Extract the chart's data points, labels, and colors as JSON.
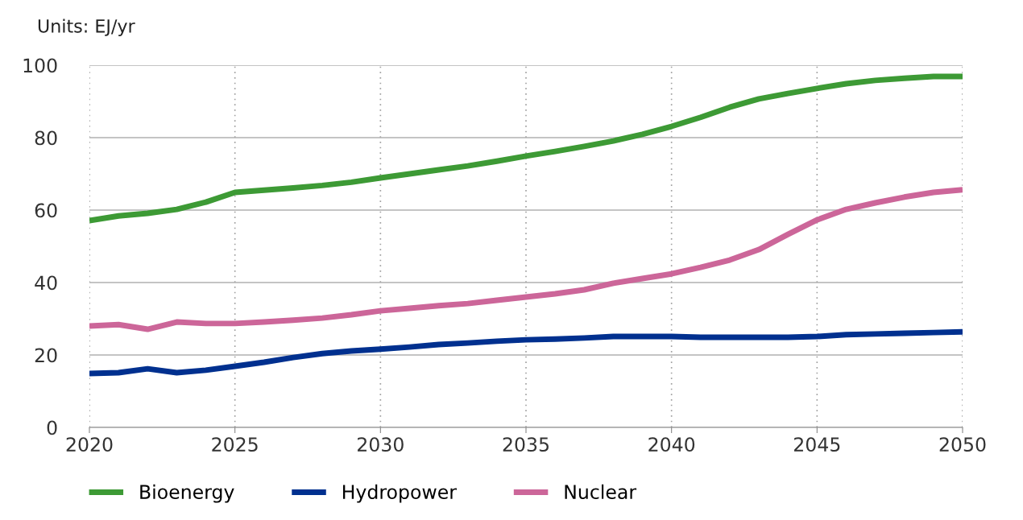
{
  "chart_data": {
    "type": "line",
    "ylabel": "Units: EJ/yr",
    "x": [
      2020,
      2021,
      2022,
      2023,
      2024,
      2025,
      2026,
      2027,
      2028,
      2029,
      2030,
      2031,
      2032,
      2033,
      2034,
      2035,
      2036,
      2037,
      2038,
      2039,
      2040,
      2041,
      2042,
      2043,
      2044,
      2045,
      2046,
      2047,
      2048,
      2049,
      2050
    ],
    "series": [
      {
        "name": "Bioenergy",
        "color": "#3d9a35",
        "values": [
          57.1,
          58.4,
          59.1,
          60.2,
          62.2,
          64.9,
          65.5,
          66.1,
          66.8,
          67.7,
          68.9,
          70.0,
          71.1,
          72.2,
          73.5,
          74.9,
          76.2,
          77.6,
          79.1,
          80.9,
          83.1,
          85.6,
          88.4,
          90.7,
          92.2,
          93.6,
          94.9,
          95.8,
          96.4,
          96.9,
          96.9
        ]
      },
      {
        "name": "Hydropower",
        "color": "#00308f",
        "values": [
          14.9,
          15.1,
          16.2,
          15.1,
          15.8,
          16.9,
          18.0,
          19.3,
          20.4,
          21.1,
          21.6,
          22.2,
          22.9,
          23.3,
          23.8,
          24.2,
          24.4,
          24.7,
          25.1,
          25.1,
          25.1,
          24.9,
          24.9,
          24.9,
          24.9,
          25.1,
          25.6,
          25.8,
          26.0,
          26.2,
          26.4
        ]
      },
      {
        "name": "Nuclear",
        "color": "#cc6699",
        "values": [
          28.0,
          28.4,
          27.1,
          29.1,
          28.7,
          28.7,
          29.1,
          29.6,
          30.2,
          31.1,
          32.2,
          32.9,
          33.6,
          34.2,
          35.1,
          36.0,
          36.9,
          38.0,
          39.8,
          41.1,
          42.4,
          44.2,
          46.2,
          49.1,
          53.3,
          57.3,
          60.2,
          62.0,
          63.6,
          64.9,
          65.6
        ]
      }
    ],
    "xlim": [
      2020,
      2050
    ],
    "xticks": [
      2020,
      2025,
      2030,
      2035,
      2040,
      2045,
      2050
    ],
    "ylim": [
      0,
      100
    ],
    "yticks": [
      0,
      20,
      40,
      60,
      80,
      100
    ],
    "grid": true,
    "legend": "bottom",
    "line_style": "solid",
    "marker": "none"
  }
}
